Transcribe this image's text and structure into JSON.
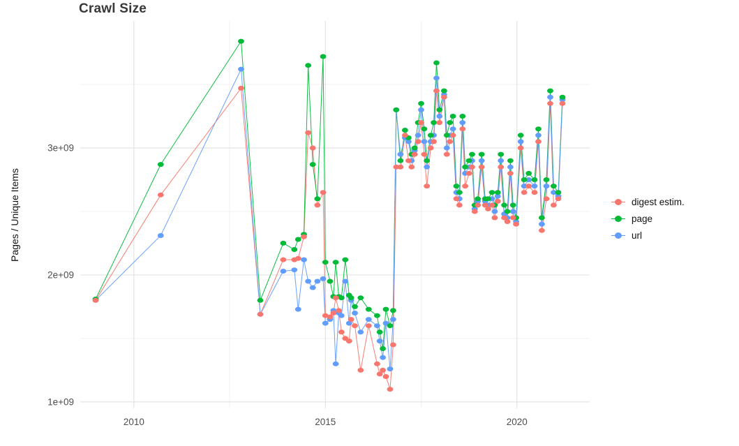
{
  "chart_data": {
    "type": "line",
    "markers": true,
    "title": "Crawl Size",
    "xlabel": "",
    "ylabel": "Pages / Unique Items",
    "legend_position": "right",
    "grid": true,
    "x_unit": "year (decimal)",
    "y_unit": "count, values given in billions (1e+09)",
    "xlim": [
      2008.6,
      2021.9
    ],
    "ylim_billions": [
      0.95,
      4.0
    ],
    "x_ticks": [
      {
        "value": 2010,
        "label": "2010"
      },
      {
        "value": 2015,
        "label": "2015"
      },
      {
        "value": 2020,
        "label": "2020"
      }
    ],
    "y_ticks": [
      {
        "value": 1,
        "label": "1e+09"
      },
      {
        "value": 2,
        "label": "2e+09"
      },
      {
        "value": 3,
        "label": "3e+09"
      }
    ],
    "x_minor_gridlines": [
      2012.5,
      2017.5
    ],
    "y_minor_gridlines": [
      1.5,
      2.5,
      3.5
    ],
    "x": [
      2009.0,
      2010.7,
      2012.8,
      2013.3,
      2013.9,
      2014.19,
      2014.29,
      2014.44,
      2014.55,
      2014.67,
      2014.79,
      2014.94,
      2015.0,
      2015.12,
      2015.21,
      2015.27,
      2015.35,
      2015.42,
      2015.52,
      2015.62,
      2015.67,
      2015.77,
      2015.92,
      2016.13,
      2016.35,
      2016.42,
      2016.5,
      2016.58,
      2016.69,
      2016.77,
      2016.85,
      2016.96,
      2017.08,
      2017.17,
      2017.25,
      2017.33,
      2017.42,
      2017.5,
      2017.58,
      2017.65,
      2017.75,
      2017.83,
      2017.9,
      2017.98,
      2018.1,
      2018.17,
      2018.25,
      2018.33,
      2018.42,
      2018.5,
      2018.58,
      2018.65,
      2018.75,
      2018.83,
      2018.9,
      2018.98,
      2019.08,
      2019.17,
      2019.25,
      2019.35,
      2019.42,
      2019.5,
      2019.58,
      2019.67,
      2019.75,
      2019.83,
      2019.9,
      2019.98,
      2020.1,
      2020.19,
      2020.31,
      2020.46,
      2020.56,
      2020.65,
      2020.77,
      2020.87,
      2020.96,
      2021.08,
      2021.19
    ],
    "series": [
      {
        "name": "digest estim.",
        "color": "#F8766D",
        "values": [
          1.8,
          2.63,
          3.47,
          1.69,
          2.12,
          2.12,
          2.13,
          2.3,
          3.12,
          3.0,
          2.55,
          2.65,
          1.68,
          1.67,
          1.7,
          1.82,
          1.72,
          1.55,
          1.5,
          1.48,
          1.65,
          1.6,
          1.25,
          1.6,
          1.3,
          1.22,
          1.25,
          1.2,
          1.1,
          1.45,
          2.85,
          2.85,
          3.1,
          2.9,
          2.85,
          2.95,
          3.05,
          3.2,
          2.95,
          2.7,
          3.0,
          3.05,
          3.45,
          3.2,
          3.4,
          2.95,
          3.05,
          3.1,
          2.6,
          2.55,
          3.15,
          2.7,
          2.8,
          2.85,
          2.5,
          2.55,
          2.85,
          2.55,
          2.52,
          2.55,
          2.45,
          2.58,
          2.85,
          2.45,
          2.42,
          2.8,
          2.45,
          2.4,
          3.0,
          2.65,
          2.7,
          2.65,
          3.05,
          2.35,
          2.6,
          3.35,
          2.55,
          2.6,
          3.35
        ]
      },
      {
        "name": "page",
        "color": "#00BA38",
        "values": [
          1.81,
          2.87,
          3.84,
          1.8,
          2.25,
          2.2,
          2.28,
          2.32,
          3.65,
          2.87,
          2.6,
          3.72,
          2.1,
          1.95,
          1.83,
          2.1,
          1.83,
          1.82,
          2.12,
          1.84,
          1.82,
          1.75,
          1.82,
          1.73,
          1.68,
          1.55,
          1.42,
          1.73,
          1.6,
          1.72,
          3.3,
          2.9,
          3.14,
          3.08,
          2.95,
          3.0,
          3.2,
          3.35,
          3.15,
          2.9,
          3.1,
          3.2,
          3.67,
          3.3,
          3.45,
          3.1,
          3.2,
          3.25,
          2.7,
          2.65,
          3.25,
          2.85,
          2.9,
          2.95,
          2.55,
          2.6,
          2.95,
          2.6,
          2.6,
          2.65,
          2.55,
          2.65,
          2.95,
          2.55,
          2.5,
          2.9,
          2.55,
          2.45,
          3.1,
          2.75,
          2.8,
          2.75,
          3.15,
          2.45,
          2.75,
          3.45,
          2.7,
          2.65,
          3.4
        ]
      },
      {
        "name": "url",
        "color": "#619CFF",
        "values": [
          1.8,
          2.31,
          3.62,
          1.69,
          2.03,
          2.04,
          1.73,
          2.12,
          1.95,
          1.9,
          1.95,
          1.97,
          1.62,
          1.65,
          1.72,
          1.3,
          1.7,
          1.68,
          1.95,
          1.62,
          1.8,
          1.7,
          1.55,
          1.65,
          1.6,
          1.48,
          1.35,
          1.62,
          1.26,
          1.65,
          3.3,
          2.95,
          3.08,
          3.05,
          2.9,
          2.98,
          3.1,
          3.3,
          3.05,
          2.85,
          3.05,
          3.1,
          3.55,
          3.25,
          3.42,
          3.0,
          3.1,
          3.15,
          2.65,
          2.6,
          3.2,
          2.8,
          2.85,
          2.9,
          2.52,
          2.58,
          2.9,
          2.58,
          2.55,
          2.6,
          2.5,
          2.62,
          2.9,
          2.48,
          2.45,
          2.85,
          2.5,
          2.42,
          3.05,
          2.7,
          2.75,
          2.7,
          3.1,
          2.4,
          2.7,
          3.4,
          2.65,
          2.62,
          3.38
        ]
      }
    ],
    "style": {
      "major_grid_color": "#e4e4e4",
      "minor_grid_color": "#f1f1f1",
      "tick_label_color": "#4d4d4d",
      "background": "#ffffff"
    }
  }
}
